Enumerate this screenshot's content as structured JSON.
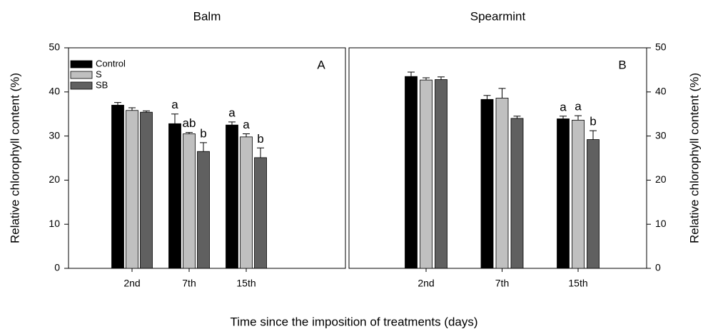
{
  "chart_data": [
    {
      "type": "bar",
      "title": "Balm",
      "panel_label": "A",
      "ylabel": "Relative chlorophyll content (%)",
      "xlabel": "Time since the imposition of treatments (days)",
      "categories": [
        "2nd",
        "7th",
        "15th"
      ],
      "series": [
        {
          "name": "Control",
          "color": "#000000",
          "values": [
            37.0,
            32.8,
            32.5
          ],
          "errors": [
            0.6,
            2.2,
            0.7
          ],
          "letters": [
            null,
            "a",
            "a"
          ]
        },
        {
          "name": "S",
          "color": "#c0c0c0",
          "values": [
            35.8,
            30.5,
            29.8
          ],
          "errors": [
            0.6,
            0.3,
            0.7
          ],
          "letters": [
            null,
            "ab",
            "a"
          ]
        },
        {
          "name": "SB",
          "color": "#606060",
          "values": [
            35.4,
            26.5,
            25.1
          ],
          "errors": [
            0.3,
            2.0,
            2.2
          ],
          "letters": [
            null,
            "b",
            "b"
          ]
        }
      ],
      "ylim": [
        0,
        50
      ],
      "yticks": [
        0,
        10,
        20,
        30,
        40,
        50
      ],
      "legend": "upper left"
    },
    {
      "type": "bar",
      "title": "Spearmint",
      "panel_label": "B",
      "ylabel": "Relative chlorophyll content (%)",
      "categories": [
        "2nd",
        "7th",
        "15th"
      ],
      "series": [
        {
          "color": "#000000",
          "values": [
            43.5,
            38.3,
            33.9
          ],
          "errors": [
            1.0,
            0.9,
            0.6
          ],
          "letters": [
            null,
            null,
            "a"
          ]
        },
        {
          "color": "#c0c0c0",
          "values": [
            42.7,
            38.6,
            33.6
          ],
          "errors": [
            0.5,
            2.2,
            1.0
          ],
          "letters": [
            null,
            null,
            "a"
          ]
        },
        {
          "color": "#606060",
          "values": [
            42.8,
            34.0,
            29.2
          ],
          "errors": [
            0.6,
            0.5,
            2.0
          ],
          "letters": [
            null,
            null,
            "b"
          ]
        }
      ],
      "ylim": [
        0,
        50
      ],
      "yticks": [
        0,
        10,
        20,
        30,
        40,
        50
      ]
    }
  ]
}
